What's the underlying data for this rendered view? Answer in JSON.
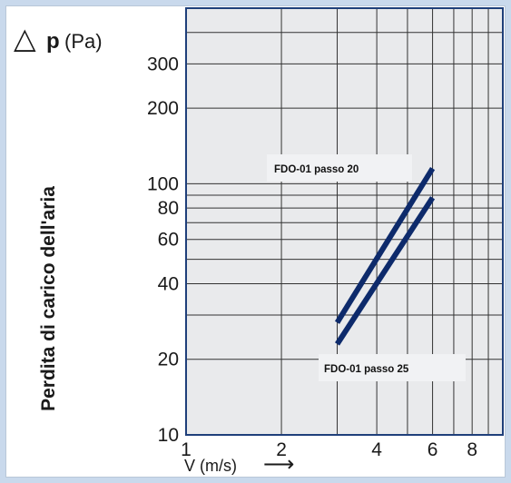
{
  "chart_data": {
    "type": "line",
    "y_axis": {
      "symbol": "△",
      "variable": "p",
      "unit": "(Pa)",
      "title": "Perdita di carico  dell'aria",
      "scale": "log",
      "range": [
        10,
        500
      ],
      "ticks": [
        10,
        20,
        40,
        60,
        80,
        100,
        200,
        300
      ],
      "tick_labels": [
        "10",
        "20",
        "40",
        "60",
        "80",
        "100",
        "200",
        "300"
      ],
      "gridlines": [
        10,
        20,
        30,
        40,
        50,
        60,
        70,
        80,
        90,
        100,
        200,
        300,
        400,
        500
      ]
    },
    "x_axis": {
      "label": "V (m/s)",
      "arrow": "⟶",
      "scale": "log",
      "range": [
        1,
        10
      ],
      "ticks": [
        1,
        2,
        4,
        6,
        8
      ],
      "tick_labels": [
        "1",
        "2",
        "4",
        "6",
        "8"
      ],
      "gridlines": [
        1,
        2,
        3,
        4,
        5,
        6,
        7,
        8,
        9,
        10
      ]
    },
    "grid": true,
    "series": [
      {
        "name": "FDO-01  passo 20",
        "x": [
          3,
          6
        ],
        "y": [
          28,
          115
        ]
      },
      {
        "name": "FDO-01  passo 25",
        "x": [
          3,
          6
        ],
        "y": [
          23,
          88
        ]
      }
    ],
    "colors": {
      "series": "#0d2a6b",
      "frame": "#1f3f7a",
      "grid": "#333333",
      "plot_bg": "#e9eaec",
      "label_box": "#f1f2f4",
      "page_bg": "#c9d9ec"
    }
  }
}
